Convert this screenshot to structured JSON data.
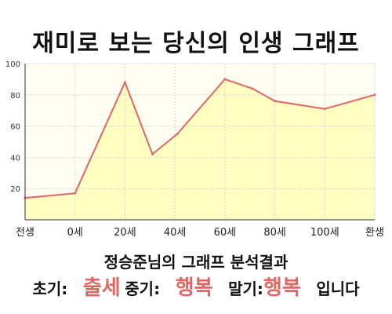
{
  "title": "재미로 보는 당신의 인생 그래프",
  "result": {
    "heading": "정승준님의 그래프 분석결과",
    "early_label": "초기:",
    "early_value": "출세",
    "middle_label": "중기:",
    "middle_value": "행복",
    "late_label": "말기:",
    "late_value": "행복",
    "ending": "입니다"
  },
  "colors": {
    "line": "#e06666",
    "fill": "#ffffc2",
    "plot_bg": "#fffef0",
    "grid": "#d4d4d4"
  },
  "chart_data": {
    "type": "area",
    "title": "",
    "xlabel": "",
    "ylabel": "",
    "ylim": [
      0,
      100
    ],
    "yticks": [
      20,
      40,
      60,
      80,
      100
    ],
    "grid": true,
    "xticks": [
      {
        "x": 0,
        "label": "전생"
      },
      {
        "x": 1,
        "label": "0세"
      },
      {
        "x": 2,
        "label": "20세"
      },
      {
        "x": 3,
        "label": "40세"
      },
      {
        "x": 4,
        "label": "60세"
      },
      {
        "x": 5,
        "label": "80세"
      },
      {
        "x": 6,
        "label": "100세"
      },
      {
        "x": 7,
        "label": "환생"
      }
    ],
    "series": [
      {
        "x": [
          0,
          1,
          2,
          2.55,
          3.05,
          4,
          4.55,
          5,
          6,
          7
        ],
        "y": [
          14,
          17,
          88,
          42,
          55,
          90,
          84,
          76,
          71,
          80
        ]
      }
    ]
  }
}
